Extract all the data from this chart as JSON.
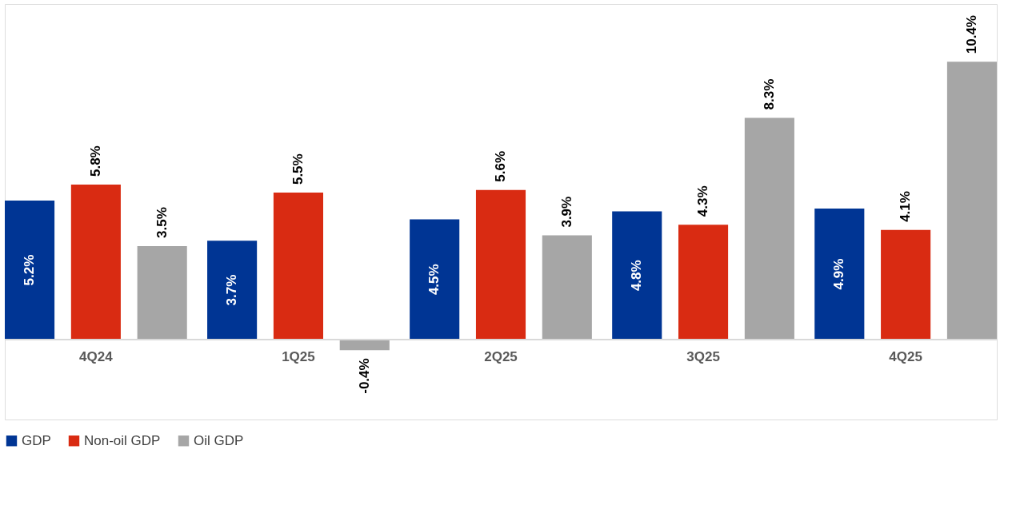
{
  "chart_data": {
    "type": "bar",
    "categories": [
      "4Q24",
      "1Q25",
      "2Q25",
      "3Q25",
      "4Q25"
    ],
    "series": [
      {
        "name": "GDP",
        "color": "#003594",
        "values": [
          5.2,
          3.7,
          4.5,
          4.8,
          4.9
        ],
        "value_labels": [
          "5.2%",
          "3.7%",
          "4.5%",
          "4.8%",
          "4.9%"
        ]
      },
      {
        "name": "Non-oil GDP",
        "color": "#d92b12",
        "values": [
          5.8,
          5.5,
          5.6,
          4.3,
          4.1
        ],
        "value_labels": [
          "5.8%",
          "5.5%",
          "5.6%",
          "4.3%",
          "4.1%"
        ]
      },
      {
        "name": "Oil GDP",
        "color": "#a6a6a6",
        "values": [
          3.5,
          -0.4,
          3.9,
          8.3,
          10.4
        ],
        "value_labels": [
          "3.5%",
          "-0.4%",
          "3.9%",
          "8.3%",
          "10.4%"
        ]
      }
    ],
    "legend": "bottom",
    "grid": false
  }
}
